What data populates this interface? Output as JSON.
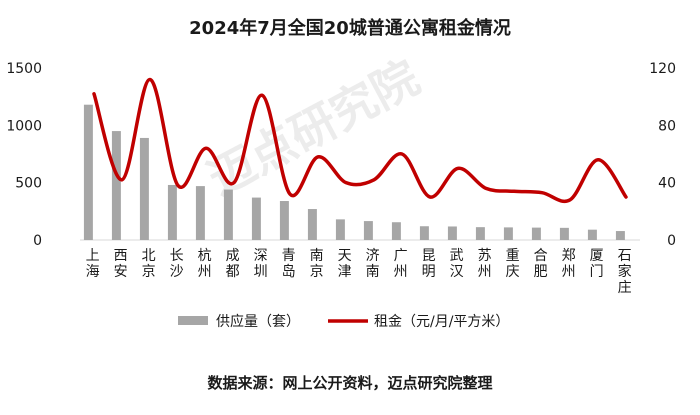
{
  "title": "2024年7月全国20城普通公寓租金情况",
  "source": "数据来源：网上公开资料，迈点研究院整理",
  "watermark": "迈点研究院",
  "colors": {
    "bar": "#a6a6a6",
    "line": "#c00000",
    "axis": "#d9d9d9"
  },
  "chart_data": {
    "type": "bar+line",
    "categories": [
      "上海",
      "西安",
      "北京",
      "长沙",
      "杭州",
      "成都",
      "深圳",
      "青岛",
      "南京",
      "天津",
      "济南",
      "广州",
      "昆明",
      "武汉",
      "苏州",
      "重庆",
      "合肥",
      "郑州",
      "厦门",
      "石家庄"
    ],
    "series": [
      {
        "name": "供应量（套）",
        "type": "bar",
        "axis": "left",
        "values": [
          1180,
          950,
          890,
          480,
          470,
          440,
          370,
          340,
          270,
          180,
          165,
          155,
          120,
          118,
          112,
          110,
          108,
          106,
          90,
          78
        ]
      },
      {
        "name": "租金（元/月/平方米）",
        "type": "line",
        "axis": "right",
        "values": [
          102,
          42,
          112,
          38,
          64,
          40,
          101,
          32,
          58,
          40,
          42,
          60,
          30,
          50,
          36,
          34,
          33,
          28,
          56,
          30
        ]
      }
    ],
    "y_left": {
      "range": [
        0,
        1500
      ],
      "ticks": [
        0,
        500,
        1000,
        1500
      ]
    },
    "y_right": {
      "range": [
        0,
        120
      ],
      "ticks": [
        0,
        40,
        80,
        120
      ]
    },
    "legend_position": "bottom",
    "grid": false
  }
}
